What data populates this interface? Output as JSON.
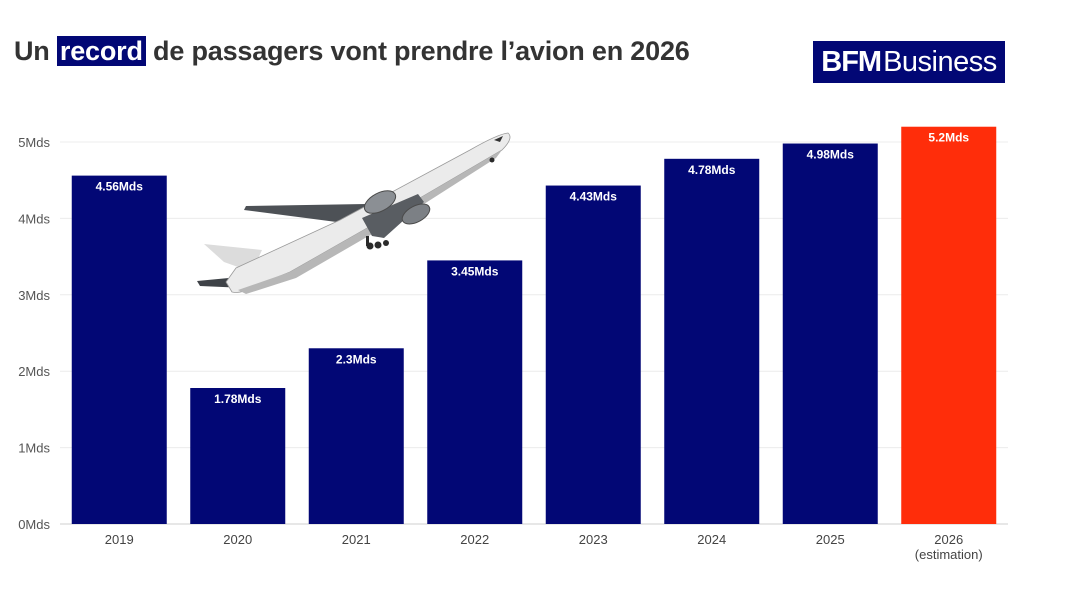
{
  "header": {
    "title_pre": "Un ",
    "title_highlight": "record",
    "title_post": " de passagers vont prendre l’avion en 2026",
    "highlight_color": "#020775"
  },
  "logo": {
    "bold": "BFM",
    "light": "Business",
    "color": "#020775"
  },
  "chart_data": {
    "type": "bar",
    "categories": [
      "2019",
      "2020",
      "2021",
      "2022",
      "2023",
      "2024",
      "2025",
      "2026"
    ],
    "category_sublabels": [
      "",
      "",
      "",
      "",
      "",
      "",
      "",
      "(estimation)"
    ],
    "values": [
      4.56,
      1.78,
      2.3,
      3.45,
      4.43,
      4.78,
      4.98,
      5.2
    ],
    "data_labels": [
      "4.56Mds",
      "1.78Mds",
      "2.3Mds",
      "3.45Mds",
      "4.43Mds",
      "4.78Mds",
      "4.98Mds",
      "5.2Mds"
    ],
    "bar_colors": [
      "#020775",
      "#020775",
      "#020775",
      "#020775",
      "#020775",
      "#020775",
      "#020775",
      "#ff2d0a"
    ],
    "y_ticks": [
      0,
      1,
      2,
      3,
      4,
      5
    ],
    "y_tick_labels": [
      "0Mds",
      "1Mds",
      "2Mds",
      "3Mds",
      "4Mds",
      "5Mds"
    ],
    "ylim": [
      0,
      5.2
    ],
    "grid": true,
    "title": "Un record de passagers vont prendre l’avion en 2026",
    "xlabel": "",
    "ylabel": ""
  },
  "decoration": {
    "image": "airplane-takeoff-photo"
  }
}
